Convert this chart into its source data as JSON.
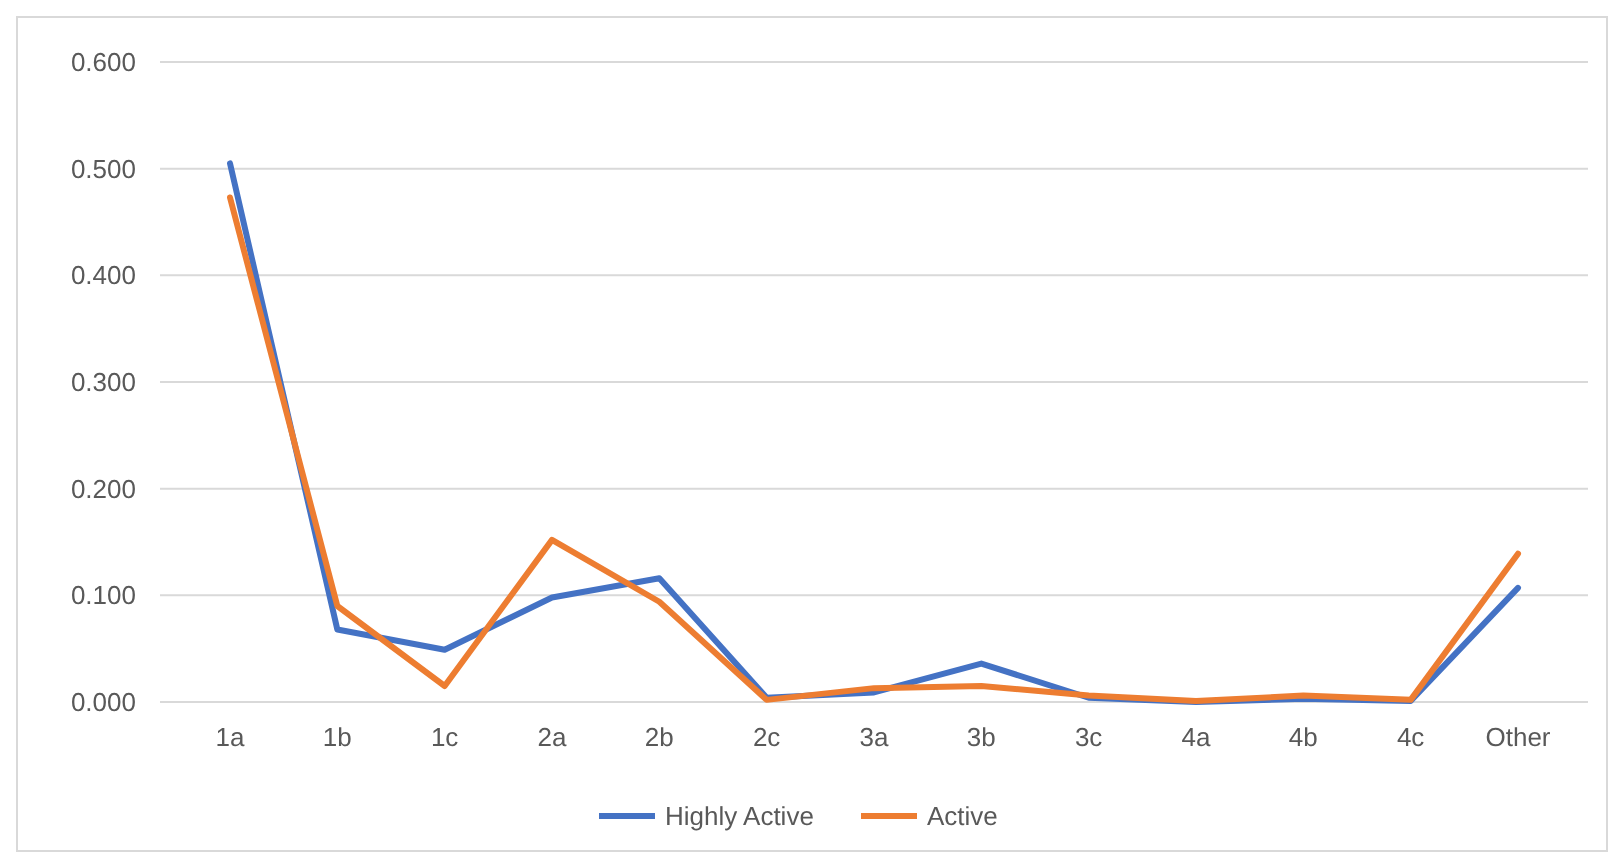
{
  "chart_data": {
    "type": "line",
    "categories": [
      "1a",
      "1b",
      "1c",
      "2a",
      "2b",
      "2c",
      "3a",
      "3b",
      "3c",
      "4a",
      "4b",
      "4c",
      "Other"
    ],
    "series": [
      {
        "name": "Highly Active",
        "color": "#4472c4",
        "values": [
          0.505,
          0.068,
          0.049,
          0.098,
          0.116,
          0.004,
          0.009,
          0.036,
          0.004,
          0.0,
          0.003,
          0.001,
          0.107
        ]
      },
      {
        "name": "Active",
        "color": "#ed7d31",
        "values": [
          0.473,
          0.09,
          0.015,
          0.152,
          0.094,
          0.002,
          0.013,
          0.015,
          0.006,
          0.001,
          0.006,
          0.002,
          0.139
        ]
      }
    ],
    "ylim": [
      0,
      0.6
    ],
    "yticks": [
      {
        "value": 0,
        "label": "0.000"
      },
      {
        "value": 0.1,
        "label": "0.100"
      },
      {
        "value": 0.2,
        "label": "0.200"
      },
      {
        "value": 0.3,
        "label": "0.300"
      },
      {
        "value": 0.4,
        "label": "0.400"
      },
      {
        "value": 0.5,
        "label": "0.500"
      },
      {
        "value": 0.6,
        "label": "0.600"
      }
    ],
    "grid": "y",
    "legend": "bottom",
    "marker": "none",
    "line_style": "solid"
  }
}
